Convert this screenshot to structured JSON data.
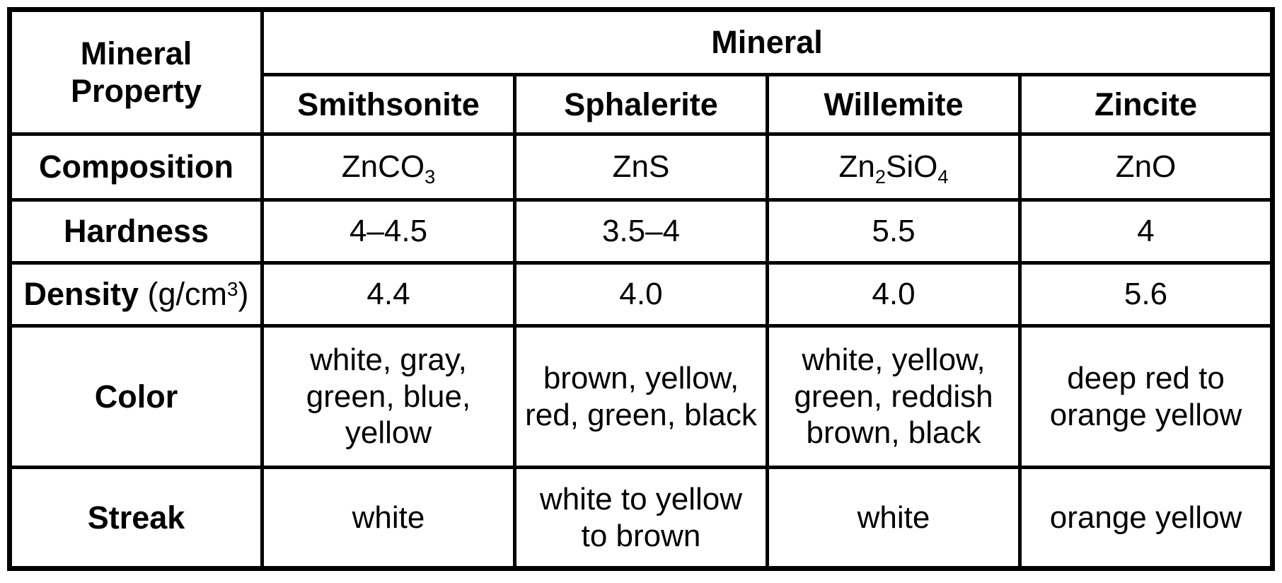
{
  "colors": {
    "background": "#ffffff",
    "border": "#000000",
    "text": "#000000"
  },
  "table": {
    "property_header": {
      "line1": "Mineral",
      "line2": "Property"
    },
    "group_header": "Mineral",
    "mineral_headers": [
      "Smithsonite",
      "Sphalerite",
      "Willemite",
      "Zincite"
    ],
    "rows": [
      {
        "label": [
          {
            "t": "text",
            "v": "Composition"
          }
        ],
        "cells": [
          [
            {
              "t": "text",
              "v": "ZnCO"
            },
            {
              "t": "sub",
              "v": "3"
            }
          ],
          [
            {
              "t": "text",
              "v": "ZnS"
            }
          ],
          [
            {
              "t": "text",
              "v": "Zn"
            },
            {
              "t": "sub",
              "v": "2"
            },
            {
              "t": "text",
              "v": "SiO"
            },
            {
              "t": "sub",
              "v": "4"
            }
          ],
          [
            {
              "t": "text",
              "v": "ZnO"
            }
          ]
        ]
      },
      {
        "label": [
          {
            "t": "text",
            "v": "Hardness"
          }
        ],
        "cells": [
          [
            {
              "t": "text",
              "v": "4–4.5"
            }
          ],
          [
            {
              "t": "text",
              "v": "3.5–4"
            }
          ],
          [
            {
              "t": "text",
              "v": "5.5"
            }
          ],
          [
            {
              "t": "text",
              "v": "4"
            }
          ]
        ]
      },
      {
        "label": [
          {
            "t": "text",
            "v": "Density"
          },
          {
            "t": "plain",
            "v": " (g/cm"
          },
          {
            "t": "sup",
            "v": "3"
          },
          {
            "t": "plain",
            "v": ")"
          }
        ],
        "cells": [
          [
            {
              "t": "text",
              "v": "4.4"
            }
          ],
          [
            {
              "t": "text",
              "v": "4.0"
            }
          ],
          [
            {
              "t": "text",
              "v": "4.0"
            }
          ],
          [
            {
              "t": "text",
              "v": "5.6"
            }
          ]
        ]
      },
      {
        "label": [
          {
            "t": "text",
            "v": "Color"
          }
        ],
        "cells": [
          [
            {
              "t": "text",
              "v": "white, gray, green, blue, yellow"
            }
          ],
          [
            {
              "t": "text",
              "v": "brown, yellow, red, green, black"
            }
          ],
          [
            {
              "t": "text",
              "v": "white, yellow, green, reddish brown, black"
            }
          ],
          [
            {
              "t": "text",
              "v": "deep red to orange yellow"
            }
          ]
        ]
      },
      {
        "label": [
          {
            "t": "text",
            "v": "Streak"
          }
        ],
        "cells": [
          [
            {
              "t": "text",
              "v": "white"
            }
          ],
          [
            {
              "t": "text",
              "v": "white to yellow to brown"
            }
          ],
          [
            {
              "t": "text",
              "v": "white"
            }
          ],
          [
            {
              "t": "text",
              "v": "orange yellow"
            }
          ]
        ]
      }
    ]
  }
}
